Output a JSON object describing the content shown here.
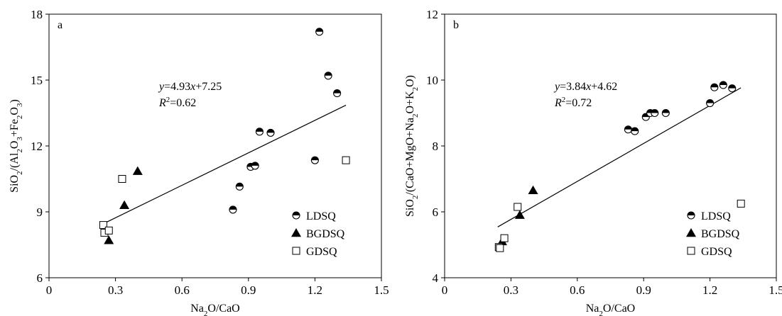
{
  "chart_data": [
    {
      "type": "scatter",
      "panel_label": "a",
      "xlabel": "Na₂O/CaO",
      "ylabel": "SiO₂/(Al₂O₃+Fe₂O₃)",
      "xlim": [
        0,
        1.5
      ],
      "ylim": [
        6,
        18
      ],
      "xticks": [
        0,
        0.3,
        0.6,
        0.9,
        1.2,
        1.5
      ],
      "xtick_labels": [
        "0",
        "0.3",
        "0.6",
        "0.9",
        "1.2",
        "1.5"
      ],
      "yticks": [
        6,
        9,
        12,
        15,
        18
      ],
      "ytick_labels": [
        "6",
        "9",
        "12",
        "15",
        "18"
      ],
      "grid": false,
      "legend_position": "bottom-right",
      "series": [
        {
          "name": "LDSQ",
          "marker": "half-filled-circle",
          "points": [
            [
              0.83,
              9.1
            ],
            [
              0.86,
              10.15
            ],
            [
              0.91,
              11.05
            ],
            [
              0.93,
              11.1
            ],
            [
              0.95,
              12.65
            ],
            [
              1.0,
              12.6
            ],
            [
              1.2,
              11.35
            ],
            [
              1.22,
              17.2
            ],
            [
              1.26,
              15.2
            ],
            [
              1.3,
              14.4
            ]
          ]
        },
        {
          "name": "BGDSQ",
          "marker": "filled-triangle",
          "points": [
            [
              0.27,
              7.7
            ],
            [
              0.34,
              9.3
            ],
            [
              0.4,
              10.85
            ]
          ]
        },
        {
          "name": "GDSQ",
          "marker": "open-square",
          "points": [
            [
              0.245,
              8.4
            ],
            [
              0.25,
              8.05
            ],
            [
              0.27,
              8.15
            ],
            [
              0.33,
              10.5
            ],
            [
              1.34,
              11.35
            ]
          ]
        }
      ],
      "fit": {
        "x_range": [
          0.24,
          1.34
        ],
        "slope": 4.93,
        "intercept": 7.25,
        "equation_var": "y",
        "equation_rhs": "=4.93",
        "equation_x": "x",
        "equation_tail": "+7.25",
        "r2_var": "R",
        "r2_sup": "2",
        "r2_value": "=0.62"
      }
    },
    {
      "type": "scatter",
      "panel_label": "b",
      "xlabel": "Na₂O/CaO",
      "ylabel": "SiO₂/(CaO+MgO+Na₂O+K₂O)",
      "xlim": [
        0,
        1.5
      ],
      "ylim": [
        4,
        12
      ],
      "xticks": [
        0,
        0.3,
        0.6,
        0.9,
        1.2,
        1.5
      ],
      "xtick_labels": [
        "0",
        "0.3",
        "0.6",
        "0.9",
        "1.2",
        "1.5"
      ],
      "yticks": [
        4,
        6,
        8,
        10,
        12
      ],
      "ytick_labels": [
        "4",
        "6",
        "8",
        "10",
        "12"
      ],
      "grid": false,
      "legend_position": "bottom-right",
      "series": [
        {
          "name": "LDSQ",
          "marker": "half-filled-circle",
          "points": [
            [
              0.83,
              8.5
            ],
            [
              0.86,
              8.45
            ],
            [
              0.91,
              8.88
            ],
            [
              0.93,
              9.0
            ],
            [
              0.95,
              9.0
            ],
            [
              1.0,
              9.0
            ],
            [
              1.2,
              9.3
            ],
            [
              1.22,
              9.78
            ],
            [
              1.26,
              9.85
            ],
            [
              1.3,
              9.75
            ]
          ]
        },
        {
          "name": "BGDSQ",
          "marker": "filled-triangle",
          "points": [
            [
              0.26,
              5.1
            ],
            [
              0.34,
              5.9
            ],
            [
              0.4,
              6.65
            ]
          ]
        },
        {
          "name": "GDSQ",
          "marker": "open-square",
          "points": [
            [
              0.245,
              4.93
            ],
            [
              0.25,
              4.9
            ],
            [
              0.27,
              5.2
            ],
            [
              0.33,
              6.15
            ],
            [
              1.34,
              6.25
            ]
          ]
        }
      ],
      "fit": {
        "x_range": [
          0.24,
          1.34
        ],
        "slope": 3.84,
        "intercept": 4.62,
        "equation_var": "y",
        "equation_rhs": "=3.84",
        "equation_x": "x",
        "equation_tail": "+4.62",
        "r2_var": "R",
        "r2_sup": "2",
        "r2_value": "=0.72"
      }
    }
  ]
}
